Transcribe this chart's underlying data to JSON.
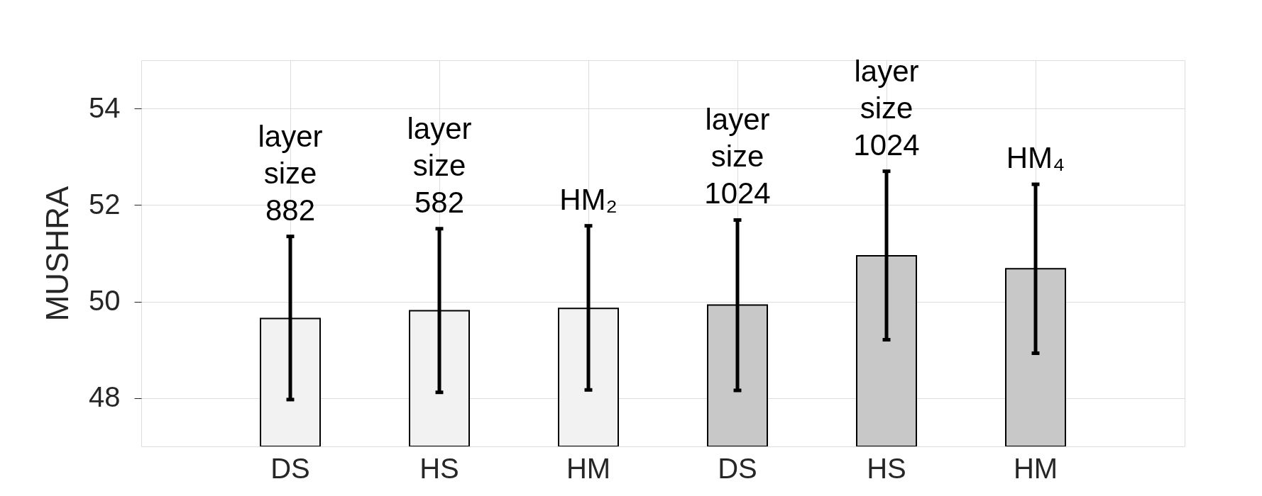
{
  "chart_data": {
    "type": "bar",
    "ylabel": "MUSHRA",
    "categories": [
      "DS",
      "HS",
      "HM",
      "DS",
      "HS",
      "HM"
    ],
    "values": [
      49.65,
      49.81,
      49.86,
      49.93,
      50.95,
      50.68
    ],
    "colors": [
      "#f2f2f2",
      "#f2f2f2",
      "#f2f2f2",
      "#c8c8c8",
      "#c8c8c8",
      "#c8c8c8"
    ],
    "errors": [
      [
        47.97,
        51.35
      ],
      [
        48.12,
        51.51
      ],
      [
        48.17,
        51.57
      ],
      [
        48.16,
        51.69
      ],
      [
        49.21,
        52.7
      ],
      [
        48.93,
        52.43
      ]
    ],
    "annotations": [
      "layer\nsize\n882",
      "layer\nsize\n582",
      "HM₂",
      "layer\nsize\n1024",
      "layer\nsize\n1024",
      "HM₄"
    ],
    "ylim": [
      47,
      55
    ],
    "yticks": [
      48,
      50,
      52,
      54
    ],
    "grid": true
  }
}
